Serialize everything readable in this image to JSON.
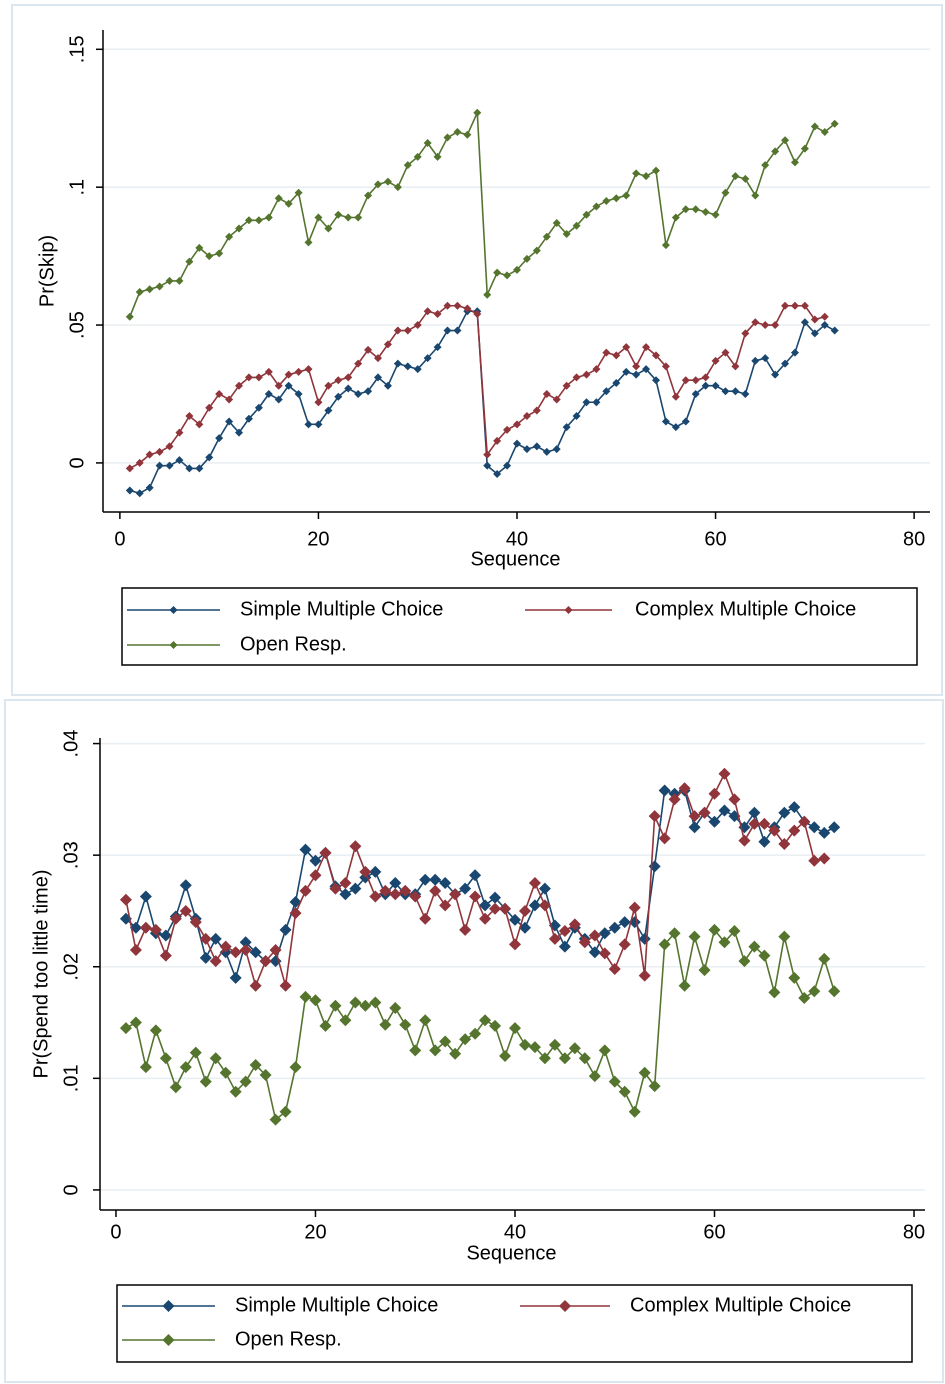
{
  "chart_data": [
    {
      "type": "line",
      "y_title": "Pr(Skip)",
      "x_title": "Sequence",
      "x": [
        1,
        2,
        3,
        4,
        5,
        6,
        7,
        8,
        9,
        10,
        11,
        12,
        13,
        14,
        15,
        16,
        17,
        18,
        19,
        20,
        21,
        22,
        23,
        24,
        25,
        26,
        27,
        28,
        29,
        30,
        31,
        32,
        33,
        34,
        35,
        36,
        37,
        38,
        39,
        40,
        41,
        42,
        43,
        44,
        45,
        46,
        47,
        48,
        49,
        50,
        51,
        52,
        53,
        54,
        55,
        56,
        57,
        58,
        59,
        60,
        61,
        62,
        63,
        64,
        65,
        66,
        67,
        68,
        69,
        70,
        71,
        72
      ],
      "xlim": [
        -1.7,
        81.6
      ],
      "xticks": [
        0,
        20,
        40,
        60,
        80
      ],
      "ylim": [
        -0.0178,
        0.157
      ],
      "yticks": [
        {
          "value": 0,
          "label": "0"
        },
        {
          "value": 0.05,
          "label": ".05"
        },
        {
          "value": 0.1,
          "label": ".1"
        },
        {
          "value": 0.15,
          "label": ".15"
        }
      ],
      "grid": true,
      "legend": "bottom",
      "series": [
        {
          "name": "Simple Multiple Choice",
          "color": "#1a476f",
          "values": [
            -0.01,
            -0.011,
            -0.009,
            -0.001,
            -0.001,
            0.001,
            -0.002,
            -0.002,
            0.002,
            0.009,
            0.015,
            0.011,
            0.016,
            0.02,
            0.025,
            0.023,
            0.028,
            0.025,
            0.014,
            0.014,
            0.019,
            0.024,
            0.027,
            0.025,
            0.026,
            0.031,
            0.028,
            0.036,
            0.035,
            0.034,
            0.038,
            0.042,
            0.048,
            0.048,
            0.055,
            0.055,
            -0.001,
            -0.004,
            -0.001,
            0.007,
            0.005,
            0.006,
            0.004,
            0.005,
            0.013,
            0.017,
            0.022,
            0.022,
            0.026,
            0.029,
            0.033,
            0.032,
            0.034,
            0.03,
            0.015,
            0.013,
            0.015,
            0.025,
            0.028,
            0.028,
            0.026,
            0.026,
            0.025,
            0.037,
            0.038,
            0.032,
            0.036,
            0.04,
            0.051,
            0.047,
            0.05,
            0.048
          ]
        },
        {
          "name": "Complex Multiple Choice",
          "color": "#90353b",
          "values": [
            -0.002,
            0,
            0.003,
            0.004,
            0.006,
            0.011,
            0.017,
            0.014,
            0.02,
            0.025,
            0.023,
            0.028,
            0.031,
            0.031,
            0.033,
            0.028,
            0.032,
            0.033,
            0.034,
            0.022,
            0.028,
            0.03,
            0.031,
            0.036,
            0.041,
            0.038,
            0.043,
            0.048,
            0.048,
            0.05,
            0.055,
            0.054,
            0.057,
            0.057,
            0.056,
            0.054,
            0.003,
            0.008,
            0.012,
            0.014,
            0.017,
            0.019,
            0.025,
            0.023,
            0.028,
            0.031,
            0.032,
            0.034,
            0.04,
            0.039,
            0.042,
            0.035,
            0.042,
            0.039,
            0.035,
            0.024,
            0.03,
            0.03,
            0.031,
            0.037,
            0.04,
            0.035,
            0.047,
            0.051,
            0.05,
            0.05,
            0.057,
            0.057,
            0.057,
            0.052,
            0.053,
            null
          ]
        },
        {
          "name": "Open Resp.",
          "color": "#55752f",
          "values": [
            0.053,
            0.062,
            0.063,
            0.064,
            0.066,
            0.066,
            0.073,
            0.078,
            0.075,
            0.076,
            0.082,
            0.085,
            0.088,
            0.088,
            0.089,
            0.096,
            0.094,
            0.098,
            0.08,
            0.089,
            0.085,
            0.09,
            0.089,
            0.089,
            0.097,
            0.101,
            0.102,
            0.1,
            0.108,
            0.111,
            0.116,
            0.111,
            0.118,
            0.12,
            0.119,
            0.127,
            0.061,
            0.069,
            0.068,
            0.07,
            0.074,
            0.077,
            0.082,
            0.087,
            0.083,
            0.086,
            0.09,
            0.093,
            0.095,
            0.096,
            0.097,
            0.105,
            0.104,
            0.106,
            0.079,
            0.089,
            0.092,
            0.092,
            0.091,
            0.09,
            0.098,
            0.104,
            0.103,
            0.097,
            0.108,
            0.113,
            0.117,
            0.109,
            0.114,
            0.122,
            0.12,
            0.123
          ]
        }
      ]
    },
    {
      "type": "line",
      "y_title": "Pr(Spend too little time)",
      "x_title": "Sequence",
      "x": [
        1,
        2,
        3,
        4,
        5,
        6,
        7,
        8,
        9,
        10,
        11,
        12,
        13,
        14,
        15,
        16,
        17,
        18,
        19,
        20,
        21,
        22,
        23,
        24,
        25,
        26,
        27,
        28,
        29,
        30,
        31,
        32,
        33,
        34,
        35,
        36,
        37,
        38,
        39,
        40,
        41,
        42,
        43,
        44,
        45,
        46,
        47,
        48,
        49,
        50,
        51,
        52,
        53,
        54,
        55,
        56,
        57,
        58,
        59,
        60,
        61,
        62,
        63,
        64,
        65,
        66,
        67,
        68,
        69,
        70,
        71,
        72
      ],
      "xlim": [
        -1.6,
        81.1
      ],
      "xticks": [
        0,
        20,
        40,
        60,
        80
      ],
      "ylim": [
        -0.0018,
        0.0405
      ],
      "yticks": [
        {
          "value": 0,
          "label": "0"
        },
        {
          "value": 0.01,
          "label": ".01"
        },
        {
          "value": 0.02,
          "label": ".02"
        },
        {
          "value": 0.03,
          "label": ".03"
        },
        {
          "value": 0.04,
          "label": ".04"
        }
      ],
      "grid": true,
      "legend": "bottom",
      "series": [
        {
          "name": "Simple Multiple Choice",
          "color": "#1a476f",
          "values": [
            0.0243,
            0.0235,
            0.0263,
            0.023,
            0.0228,
            0.0245,
            0.0273,
            0.0243,
            0.0208,
            0.0225,
            0.0213,
            0.019,
            0.0222,
            0.0213,
            0.0205,
            0.0205,
            0.0233,
            0.0258,
            0.0305,
            0.0295,
            0.0302,
            0.0272,
            0.0265,
            0.027,
            0.028,
            0.0285,
            0.0265,
            0.0275,
            0.0265,
            0.0265,
            0.0278,
            0.0278,
            0.0275,
            0.0265,
            0.027,
            0.0282,
            0.0255,
            0.0262,
            0.0252,
            0.0242,
            0.0235,
            0.0255,
            0.027,
            0.0237,
            0.0218,
            0.0235,
            0.0225,
            0.0213,
            0.023,
            0.0235,
            0.024,
            0.024,
            0.0225,
            0.029,
            0.0358,
            0.0355,
            0.0358,
            0.0325,
            0.0338,
            0.033,
            0.034,
            0.0335,
            0.0325,
            0.0338,
            0.0312,
            0.0325,
            0.0338,
            0.0343,
            0.033,
            0.0325,
            0.032,
            0.0325
          ]
        },
        {
          "name": "Complex Multiple Choice",
          "color": "#90353b",
          "values": [
            0.026,
            0.0215,
            0.0235,
            0.0233,
            0.021,
            0.0243,
            0.025,
            0.024,
            0.0225,
            0.0205,
            0.0218,
            0.0213,
            0.0215,
            0.0183,
            0.0205,
            0.0215,
            0.0183,
            0.0248,
            0.0268,
            0.0282,
            0.0302,
            0.027,
            0.0275,
            0.0308,
            0.0285,
            0.0263,
            0.0268,
            0.0265,
            0.0268,
            0.0263,
            0.0243,
            0.0268,
            0.0255,
            0.0265,
            0.0233,
            0.0263,
            0.0243,
            0.0252,
            0.0252,
            0.022,
            0.025,
            0.0275,
            0.0255,
            0.0225,
            0.0232,
            0.0238,
            0.0222,
            0.0228,
            0.0212,
            0.0198,
            0.022,
            0.0253,
            0.0192,
            0.0335,
            0.0315,
            0.035,
            0.036,
            0.0335,
            0.0338,
            0.0355,
            0.0373,
            0.035,
            0.0313,
            0.0328,
            0.0328,
            0.0322,
            0.031,
            0.0322,
            0.033,
            0.0295,
            0.0297,
            null
          ]
        },
        {
          "name": "Open Resp.",
          "color": "#55752f",
          "values": [
            0.0145,
            0.015,
            0.011,
            0.0143,
            0.0118,
            0.0092,
            0.011,
            0.0123,
            0.0097,
            0.0118,
            0.0105,
            0.0088,
            0.0097,
            0.0112,
            0.0103,
            0.0063,
            0.007,
            0.011,
            0.0173,
            0.017,
            0.0147,
            0.0165,
            0.0152,
            0.0168,
            0.0165,
            0.0168,
            0.0148,
            0.0163,
            0.0148,
            0.0125,
            0.0152,
            0.0125,
            0.0133,
            0.0122,
            0.0135,
            0.014,
            0.0152,
            0.0147,
            0.012,
            0.0145,
            0.013,
            0.0128,
            0.0118,
            0.013,
            0.0118,
            0.0127,
            0.0118,
            0.0102,
            0.0125,
            0.0097,
            0.0088,
            0.007,
            0.0105,
            0.0093,
            0.022,
            0.023,
            0.0183,
            0.0227,
            0.0197,
            0.0233,
            0.0222,
            0.0232,
            0.0205,
            0.0218,
            0.021,
            0.0177,
            0.0227,
            0.019,
            0.0172,
            0.0178,
            0.0207,
            0.0178
          ]
        }
      ]
    }
  ]
}
